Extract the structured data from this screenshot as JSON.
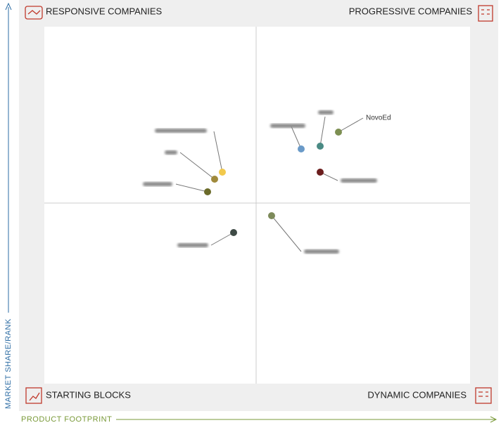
{
  "quadrants": {
    "top_left": "RESPONSIVE COMPANIES",
    "top_right": "PROGRESSIVE COMPANIES",
    "bottom_left": "STARTING BLOCKS",
    "bottom_right": "DYNAMIC COMPANIES"
  },
  "axes": {
    "y_label": "MARKET SHARE/RANK",
    "x_label": "PRODUCT FOOTPRINT"
  },
  "nodes": [
    {
      "label": "NovoEd"
    }
  ]
}
